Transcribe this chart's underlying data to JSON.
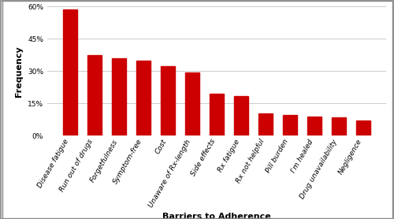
{
  "categories": [
    "Disease fatigue",
    "Run out of drugs",
    "Forgetfulness",
    "Symptom-free",
    "Cost",
    "Unaware of Rx-length",
    "Side effects",
    "Rx fatigue",
    "Rx not helpful",
    "Pill burden",
    "I'm healed",
    "Drug unavailability",
    "Negligence"
  ],
  "values": [
    58.5,
    37.5,
    36.0,
    35.0,
    32.5,
    29.5,
    19.5,
    18.5,
    10.5,
    9.5,
    9.0,
    8.5,
    7.0
  ],
  "bar_color": "#cc0000",
  "xlabel": "Barriers to Adherence",
  "ylabel": "Frequency",
  "ylim": [
    0,
    60
  ],
  "yticks": [
    0,
    15,
    30,
    45,
    60
  ],
  "ytick_labels": [
    "0%",
    "15%",
    "30%",
    "45%",
    "60%"
  ],
  "background_color": "#ffffff",
  "xlabel_fontsize": 8,
  "ylabel_fontsize": 8,
  "tick_fontsize": 6.5,
  "bar_width": 0.6,
  "border_color": "#999999",
  "grid_color": "#cccccc"
}
